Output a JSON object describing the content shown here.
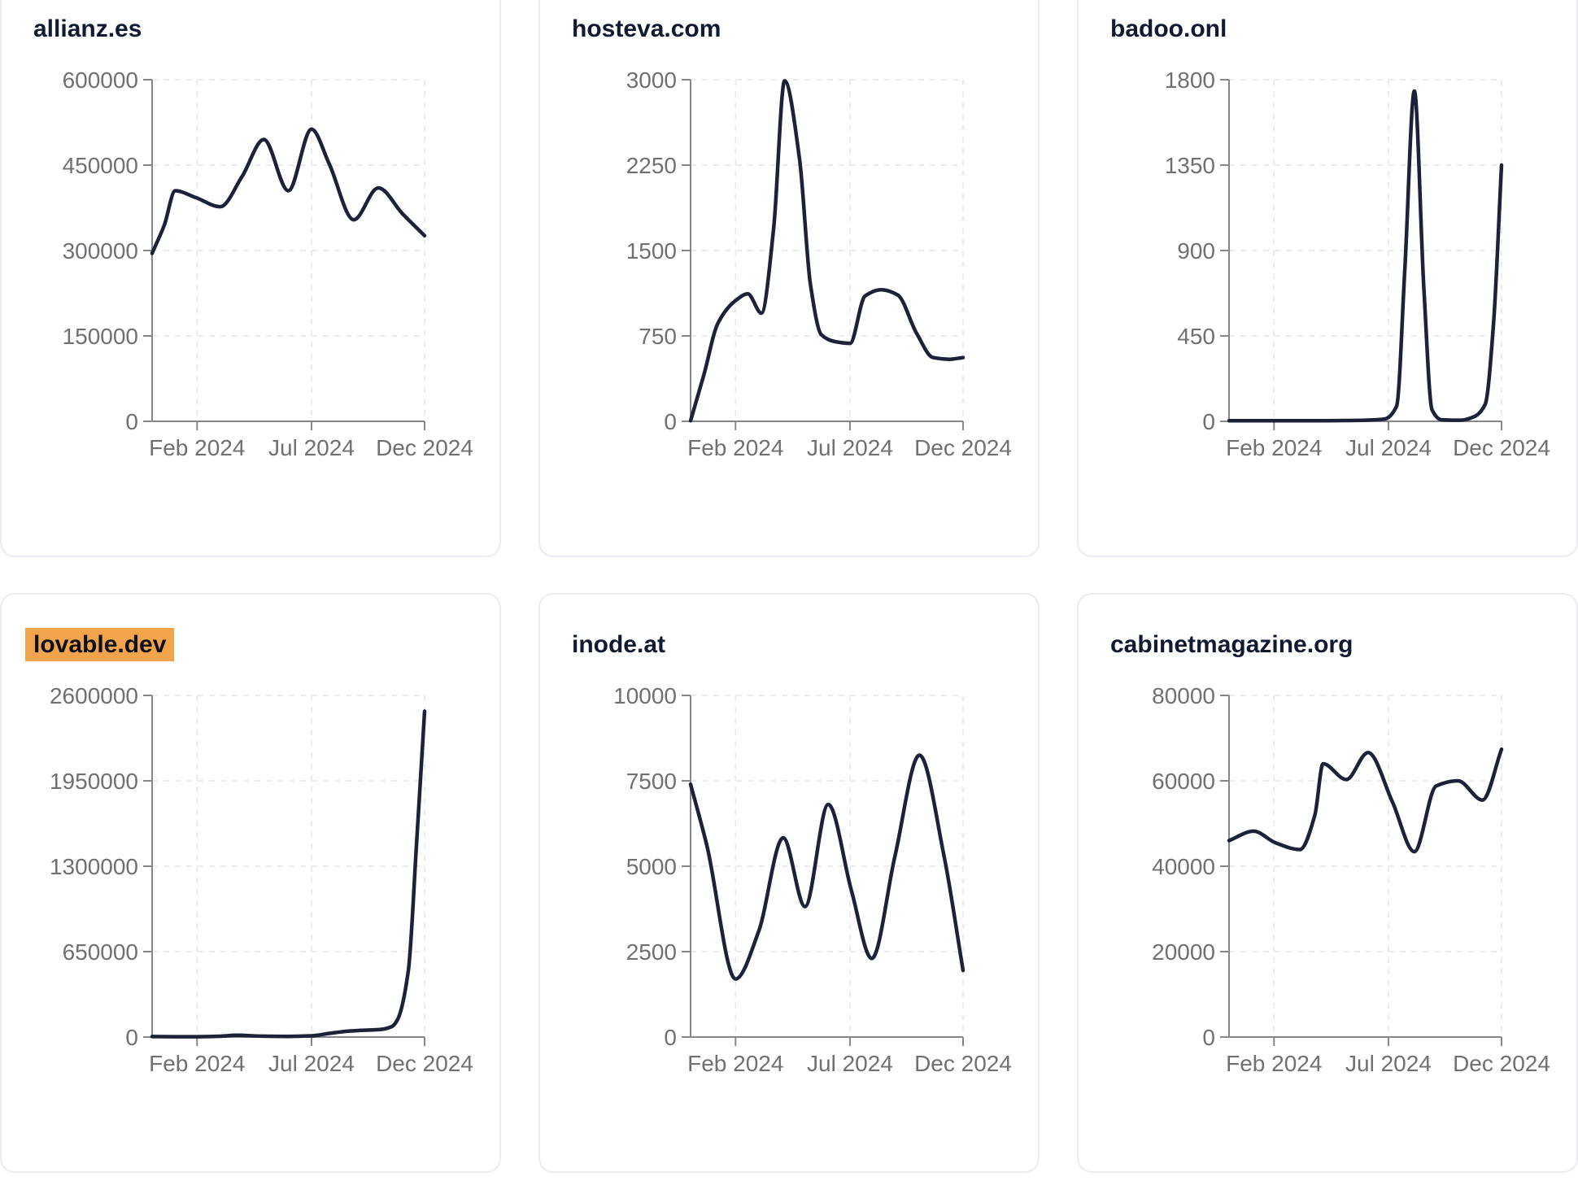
{
  "style": {
    "line_color": "#1b2239",
    "title_color": "#111a33",
    "axis_color": "#85878b",
    "tick_label_color": "#6f7074",
    "grid_color": "#e5e6e9",
    "card_border_color": "#e9edf2",
    "highlight_color": "#f2a44d",
    "highlight_text_color": "#0c101c",
    "background": "#ffffff"
  },
  "chart_data": [
    {
      "type": "line",
      "title": "allianz.es",
      "title_highlighted": false,
      "x_tick_labels": [
        "Feb 2024",
        "Jul 2024",
        "Dec 2024"
      ],
      "x_tick_positions": [
        0.165,
        0.585,
        1.0
      ],
      "y_ticks": [
        600000,
        450000,
        300000,
        150000,
        0
      ],
      "ylim": [
        0,
        600000
      ],
      "grid": true,
      "legend": false,
      "points": {
        "x": [
          0,
          0.045,
          0.085,
          0.16,
          0.25,
          0.33,
          0.41,
          0.5,
          0.585,
          0.65,
          0.74,
          0.83,
          0.92,
          1.0
        ],
        "y": [
          295000,
          345000,
          405000,
          393000,
          377000,
          430000,
          495000,
          405000,
          513000,
          452000,
          354000,
          410000,
          364000,
          326000
        ]
      }
    },
    {
      "type": "line",
      "title": "hosteva.com",
      "title_highlighted": false,
      "x_tick_labels": [
        "Feb 2024",
        "Jul 2024",
        "Dec 2024"
      ],
      "x_tick_positions": [
        0.165,
        0.585,
        1.0
      ],
      "y_ticks": [
        3000,
        2250,
        1500,
        750,
        0
      ],
      "ylim": [
        0,
        3000
      ],
      "grid": true,
      "legend": false,
      "points": {
        "x": [
          0,
          0.05,
          0.1,
          0.165,
          0.21,
          0.26,
          0.305,
          0.345,
          0.4,
          0.44,
          0.48,
          0.53,
          0.585,
          0.64,
          0.7,
          0.76,
          0.83,
          0.89,
          0.95,
          1.0
        ],
        "y": [
          5,
          420,
          860,
          1060,
          1120,
          950,
          1700,
          2990,
          2300,
          1200,
          760,
          700,
          685,
          1100,
          1155,
          1110,
          770,
          560,
          545,
          560
        ]
      }
    },
    {
      "type": "line",
      "title": "badoo.onl",
      "title_highlighted": false,
      "x_tick_labels": [
        "Feb 2024",
        "Jul 2024",
        "Dec 2024"
      ],
      "x_tick_positions": [
        0.165,
        0.585,
        1.0
      ],
      "y_ticks": [
        1800,
        1350,
        900,
        450,
        0
      ],
      "ylim": [
        0,
        1800
      ],
      "grid": true,
      "legend": false,
      "points": {
        "x": [
          0,
          0.1,
          0.2,
          0.3,
          0.4,
          0.5,
          0.57,
          0.615,
          0.645,
          0.68,
          0.715,
          0.745,
          0.78,
          0.85,
          0.9,
          0.94,
          0.97,
          1.0
        ],
        "y": [
          3,
          3,
          3,
          3,
          4,
          6,
          12,
          80,
          800,
          1740,
          700,
          60,
          8,
          6,
          25,
          90,
          500,
          1350
        ]
      }
    },
    {
      "type": "line",
      "title": "lovable.dev",
      "title_highlighted": true,
      "x_tick_labels": [
        "Feb 2024",
        "Jul 2024",
        "Dec 2024"
      ],
      "x_tick_positions": [
        0.165,
        0.585,
        1.0
      ],
      "y_ticks": [
        2600000,
        1950000,
        1300000,
        650000,
        0
      ],
      "ylim": [
        0,
        2600000
      ],
      "grid": true,
      "legend": false,
      "points": {
        "x": [
          0,
          0.08,
          0.165,
          0.25,
          0.31,
          0.4,
          0.5,
          0.585,
          0.65,
          0.72,
          0.78,
          0.84,
          0.88,
          0.9,
          0.94,
          0.97,
          1.0
        ],
        "y": [
          4000,
          2500,
          2500,
          6000,
          14000,
          7000,
          5000,
          9000,
          28000,
          45000,
          52000,
          58000,
          80000,
          130000,
          500000,
          1450000,
          2480000
        ]
      }
    },
    {
      "type": "line",
      "title": "inode.at",
      "title_highlighted": false,
      "x_tick_labels": [
        "Feb 2024",
        "Jul 2024",
        "Dec 2024"
      ],
      "x_tick_positions": [
        0.165,
        0.585,
        1.0
      ],
      "y_ticks": [
        10000,
        7500,
        5000,
        2500,
        0
      ],
      "ylim": [
        0,
        10000
      ],
      "grid": true,
      "legend": false,
      "points": {
        "x": [
          0,
          0.06,
          0.165,
          0.25,
          0.34,
          0.42,
          0.505,
          0.59,
          0.665,
          0.75,
          0.84,
          0.93,
          1.0
        ],
        "y": [
          7400,
          5600,
          1700,
          3100,
          5830,
          3820,
          6810,
          4300,
          2300,
          5300,
          8250,
          5300,
          1950
        ]
      }
    },
    {
      "type": "line",
      "title": "cabinetmagazine.org",
      "title_highlighted": false,
      "x_tick_labels": [
        "Feb 2024",
        "Jul 2024",
        "Dec 2024"
      ],
      "x_tick_positions": [
        0.165,
        0.585,
        1.0
      ],
      "y_ticks": [
        80000,
        60000,
        40000,
        20000,
        0
      ],
      "ylim": [
        0,
        80000
      ],
      "grid": true,
      "legend": false,
      "points": {
        "x": [
          0,
          0.09,
          0.17,
          0.26,
          0.315,
          0.345,
          0.43,
          0.51,
          0.6,
          0.68,
          0.76,
          0.84,
          0.93,
          1.0
        ],
        "y": [
          46000,
          48200,
          45500,
          43900,
          52000,
          64000,
          60300,
          66600,
          55000,
          43400,
          58800,
          60000,
          55500,
          67400
        ]
      }
    }
  ]
}
